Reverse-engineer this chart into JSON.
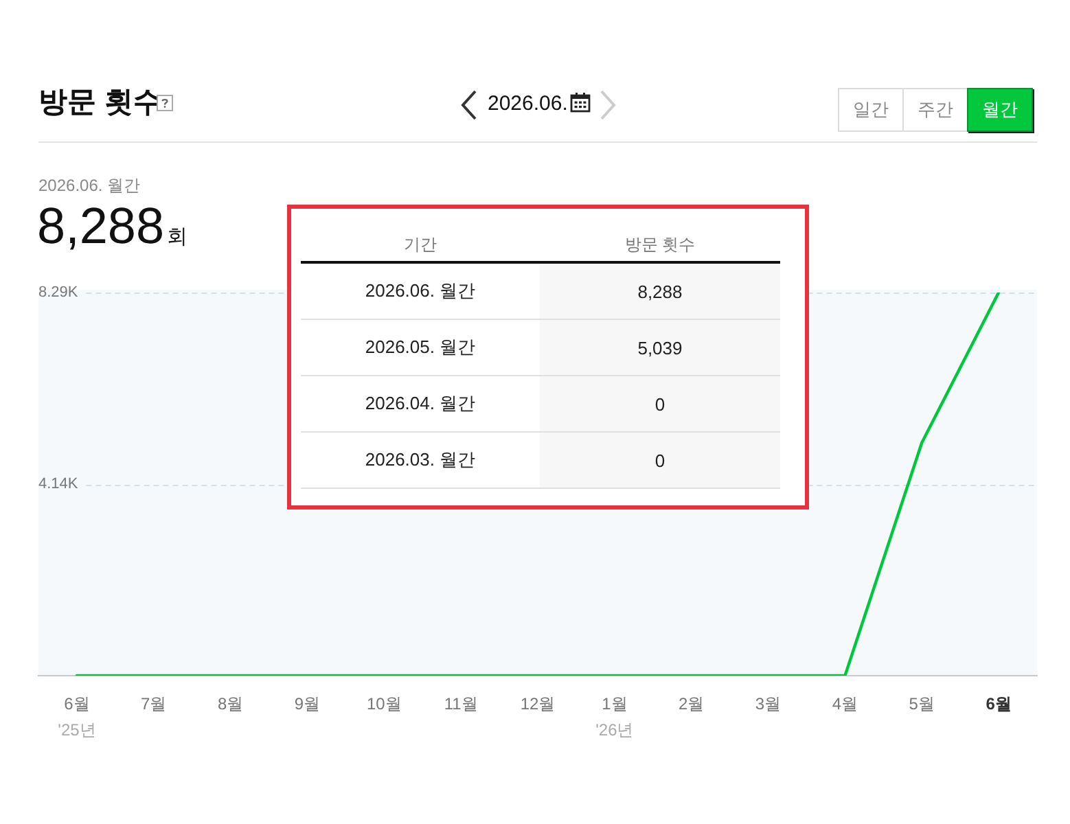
{
  "chart_data": {
    "type": "line",
    "title": "방문 횟수",
    "annotations": [
      "2026.06.",
      "일간",
      "주간",
      "월간",
      "2026.06. 월간",
      "8,288",
      "회",
      "기간",
      "방문 횟수",
      "2026.06. 월간",
      "8,288",
      "2026.05. 월간",
      "5,039",
      "2026.04. 월간",
      "0",
      "2026.03. 월간",
      "0"
    ],
    "categories": [
      "6월\n'25년",
      "7월",
      "8월",
      "9월",
      "10월",
      "11월",
      "12월",
      "1월\n'26년",
      "2월",
      "3월",
      "4월",
      "5월",
      "6월"
    ],
    "values": [
      0,
      0,
      0,
      0,
      0,
      0,
      0,
      0,
      0,
      0,
      0,
      5039,
      8288
    ],
    "color": "#00c73c",
    "ylim": [
      0,
      8288
    ],
    "yticks": [
      {
        "value": 4144,
        "label": "4.14K"
      },
      {
        "value": 8288,
        "label": "8.29K"
      }
    ],
    "grid": "y"
  }
}
